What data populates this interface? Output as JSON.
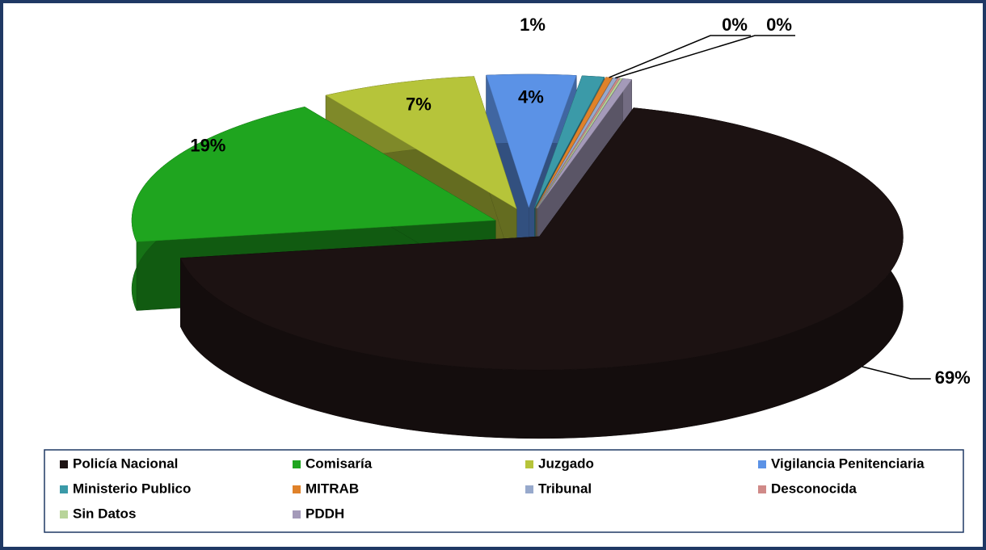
{
  "chart_data": {
    "type": "pie3d",
    "categories": [
      "Policía Nacional",
      "Comisaría",
      "Juzgado",
      "Vigilancia Penitenciaria",
      "Ministerio Publico",
      "MITRAB",
      "Tribunal",
      "Desconocida",
      "Sin Datos",
      "PDDH"
    ],
    "values": [
      69,
      19,
      7,
      4,
      1,
      0.3,
      0.2,
      0.1,
      0.1,
      0.4
    ],
    "value_labels": [
      "69%",
      "19%",
      "7%",
      "4%",
      "1%",
      "0%",
      "0%",
      null,
      null,
      null
    ],
    "colors": [
      "#1c1212",
      "#1fa51f",
      "#b6c43a",
      "#5b92e6",
      "#3b9aa8",
      "#e0822a",
      "#97a9cc",
      "#d08a88",
      "#b8d49a",
      "#a49ab9"
    ],
    "legend_position": "bottom"
  }
}
